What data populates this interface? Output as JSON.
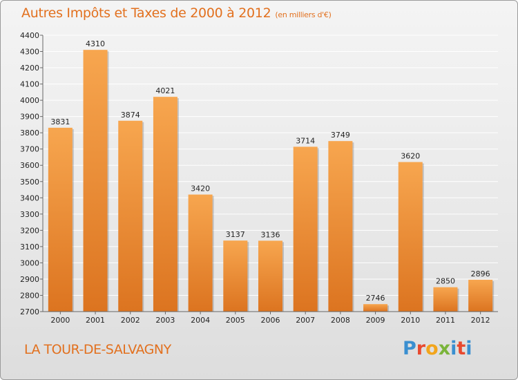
{
  "header": {
    "title": "Autres Impôts et Taxes de 2000 à 2012",
    "subtitle": "(en milliers d'€)"
  },
  "footer": {
    "city": "LA TOUR-DE-SALVAGNY",
    "logo": "Proxiti",
    "logo_colors": [
      "#3a8fd0",
      "#e8492f",
      "#f2a51c",
      "#7ab43a",
      "#3a8fd0",
      "#e8492f"
    ]
  },
  "colors": {
    "bar_top": "#f7a64f",
    "bar_bottom": "#dc7420",
    "grid": "#ffffff",
    "text": "#222222",
    "accent": "#e2701e"
  },
  "chart_data": {
    "type": "bar",
    "title": "Autres Impôts et Taxes de 2000 à 2012",
    "subtitle": "(en milliers d'€)",
    "categories": [
      "2000",
      "2001",
      "2002",
      "2003",
      "2004",
      "2005",
      "2006",
      "2007",
      "2008",
      "2009",
      "2010",
      "2011",
      "2012"
    ],
    "values": [
      3831,
      4310,
      3874,
      4021,
      3420,
      3137,
      3136,
      3714,
      3749,
      2746,
      3620,
      2850,
      2896
    ],
    "ylim": [
      2700,
      4400
    ],
    "yticks": [
      2700,
      2800,
      2900,
      3000,
      3100,
      3200,
      3300,
      3400,
      3500,
      3600,
      3700,
      3800,
      3900,
      4000,
      4100,
      4200,
      4300,
      4400
    ],
    "grid": true,
    "xlabel": "",
    "ylabel": ""
  }
}
